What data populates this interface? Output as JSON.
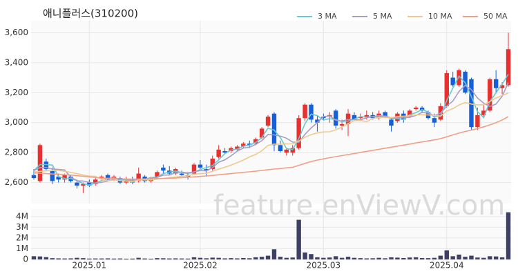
{
  "chart_data": [
    {
      "type": "candlestick",
      "title": "애니플러스(310200)",
      "watermark": "feature.enViewV.com",
      "up_color": "#e83030",
      "down_color": "#1560d8",
      "open": [
        2650,
        2610,
        2740,
        2680,
        2640,
        2620,
        2640,
        2600,
        2580,
        2600,
        2590,
        2630,
        2650,
        2630,
        2630,
        2600,
        2620,
        2610,
        2640,
        2610,
        2640,
        2700,
        2680,
        2660,
        2660,
        2650,
        2660,
        2720,
        2690,
        2690,
        2770,
        2810,
        2810,
        2820,
        2840,
        2860,
        2860,
        2900,
        2980,
        3060,
        2850,
        2800,
        2800,
        2830,
        3030,
        3120,
        3020,
        3040,
        3040,
        3080,
        2980,
        2990,
        3050,
        3030,
        3040,
        3050,
        3030,
        3070,
        3020,
        3010,
        3060,
        3040,
        3090,
        3100,
        3070,
        3030,
        3020,
        3110,
        3300,
        3250,
        3340,
        3290,
        2970,
        3050,
        3080,
        3290,
        3230,
        3250
      ],
      "high": [
        2690,
        2860,
        2760,
        2700,
        2660,
        2660,
        2650,
        2620,
        2600,
        2620,
        2630,
        2650,
        2660,
        2650,
        2640,
        2640,
        2640,
        2700,
        2650,
        2640,
        2680,
        2720,
        2710,
        2700,
        2680,
        2670,
        2730,
        2750,
        2720,
        2780,
        2850,
        2830,
        2840,
        2850,
        2870,
        2880,
        2900,
        2970,
        3050,
        3070,
        2880,
        2830,
        2850,
        3050,
        3130,
        3130,
        3050,
        3060,
        3070,
        3090,
        3020,
        3090,
        3070,
        3060,
        3080,
        3070,
        3080,
        3080,
        3030,
        3070,
        3080,
        3090,
        3110,
        3110,
        3080,
        3060,
        3130,
        3350,
        3340,
        3360,
        3350,
        3300,
        3100,
        3120,
        3300,
        3350,
        3270,
        3600
      ],
      "low": [
        2620,
        2600,
        2680,
        2590,
        2600,
        2600,
        2600,
        2560,
        2530,
        2570,
        2580,
        2610,
        2610,
        2610,
        2590,
        2590,
        2590,
        2600,
        2600,
        2600,
        2620,
        2660,
        2650,
        2650,
        2640,
        2620,
        2650,
        2690,
        2640,
        2680,
        2760,
        2790,
        2800,
        2810,
        2830,
        2830,
        2850,
        2890,
        2970,
        2810,
        2800,
        2780,
        2780,
        2820,
        3010,
        3000,
        2940,
        3020,
        3000,
        2960,
        2950,
        2910,
        3010,
        3010,
        3020,
        3020,
        3020,
        3030,
        2940,
        3000,
        3000,
        3030,
        3080,
        3070,
        3020,
        2970,
        3010,
        3100,
        3240,
        3240,
        3190,
        2950,
        2950,
        3030,
        3070,
        3200,
        3190,
        3240
      ],
      "close": [
        2630,
        2850,
        2690,
        2610,
        2620,
        2650,
        2610,
        2580,
        2590,
        2580,
        2620,
        2640,
        2620,
        2640,
        2600,
        2610,
        2600,
        2660,
        2610,
        2630,
        2670,
        2680,
        2660,
        2690,
        2650,
        2640,
        2720,
        2700,
        2680,
        2760,
        2820,
        2800,
        2830,
        2840,
        2860,
        2850,
        2890,
        2960,
        3040,
        2850,
        2810,
        2820,
        2830,
        3030,
        3120,
        3020,
        3000,
        3030,
        3050,
        2980,
        2990,
        3060,
        3020,
        3040,
        3050,
        3030,
        3060,
        3040,
        2980,
        3060,
        3020,
        3080,
        3100,
        3080,
        3030,
        3000,
        3110,
        3330,
        3250,
        3350,
        3200,
        2970,
        3050,
        3080,
        3290,
        3230,
        3250,
        3490
      ],
      "series": [
        {
          "name": "3 MA",
          "color": "#66c8d0",
          "values": [
            2680,
            2720,
            2720,
            2717,
            2640,
            2627,
            2627,
            2613,
            2593,
            2583,
            2597,
            2613,
            2627,
            2633,
            2620,
            2617,
            2603,
            2623,
            2623,
            2633,
            2637,
            2660,
            2670,
            2677,
            2667,
            2660,
            2670,
            2687,
            2700,
            2713,
            2753,
            2793,
            2817,
            2823,
            2843,
            2850,
            2867,
            2900,
            2963,
            2950,
            2900,
            2827,
            2820,
            2893,
            2993,
            3057,
            3047,
            3017,
            3027,
            3020,
            3007,
            3010,
            3023,
            3040,
            3037,
            3040,
            3047,
            3043,
            3027,
            3027,
            3020,
            3053,
            3067,
            3087,
            3070,
            3037,
            3047,
            3147,
            3230,
            3310,
            3267,
            3173,
            3073,
            3033,
            3140,
            3200,
            3257,
            3323
          ]
        },
        {
          "name": "5 MA",
          "color": "#a89bc8",
          "values": [
            2680,
            2700,
            2700,
            2690,
            2688,
            2684,
            2636,
            2612,
            2610,
            2602,
            2596,
            2602,
            2610,
            2624,
            2624,
            2622,
            2614,
            2622,
            2616,
            2622,
            2634,
            2650,
            2650,
            2666,
            2670,
            2664,
            2672,
            2680,
            2678,
            2700,
            2736,
            2752,
            2778,
            2810,
            2830,
            2836,
            2854,
            2880,
            2920,
            2918,
            2910,
            2896,
            2870,
            2868,
            2922,
            2964,
            3000,
            3040,
            3044,
            3016,
            3010,
            3022,
            3020,
            3018,
            3032,
            3040,
            3040,
            3044,
            3032,
            3034,
            3032,
            3036,
            3048,
            3068,
            3064,
            3046,
            3064,
            3110,
            3144,
            3208,
            3248,
            3220,
            3164,
            3130,
            3108,
            3124,
            3176,
            3268
          ]
        },
        {
          "name": "10 MA",
          "color": "#f0c88c",
          "values": [
            2670,
            2675,
            2678,
            2680,
            2682,
            2675,
            2668,
            2660,
            2650,
            2643,
            2642,
            2620,
            2613,
            2616,
            2613,
            2609,
            2608,
            2616,
            2619,
            2618,
            2624,
            2628,
            2632,
            2637,
            2642,
            2645,
            2656,
            2660,
            2662,
            2675,
            2690,
            2702,
            2717,
            2733,
            2750,
            2771,
            2788,
            2812,
            2848,
            2857,
            2856,
            2858,
            2858,
            2877,
            2903,
            2920,
            2931,
            2938,
            2939,
            2952,
            2970,
            2994,
            3013,
            3014,
            3007,
            3028,
            3034,
            3035,
            3033,
            3040,
            3043,
            3045,
            3051,
            3053,
            3051,
            3048,
            3043,
            3078,
            3093,
            3118,
            3134,
            3124,
            3119,
            3119,
            3141,
            3164,
            3181,
            3197
          ]
        },
        {
          "name": "50 MA",
          "color": "#f0a088",
          "values": [
            2665,
            2662,
            2660,
            2657,
            2655,
            2652,
            2650,
            2646,
            2642,
            2638,
            2634,
            2631,
            2628,
            2626,
            2625,
            2624,
            2623,
            2623,
            2624,
            2625,
            2626,
            2627,
            2629,
            2631,
            2633,
            2635,
            2638,
            2641,
            2644,
            2648,
            2652,
            2656,
            2660,
            2664,
            2668,
            2672,
            2676,
            2681,
            2686,
            2690,
            2694,
            2698,
            2702,
            2715,
            2728,
            2740,
            2750,
            2758,
            2766,
            2773,
            2780,
            2787,
            2794,
            2801,
            2808,
            2815,
            2822,
            2829,
            2836,
            2843,
            2850,
            2857,
            2864,
            2871,
            2878,
            2885,
            2893,
            2905,
            2918,
            2930,
            2941,
            2950,
            2960,
            2972,
            2985,
            3000,
            3018,
            3040
          ]
        }
      ],
      "ylim": [
        2460,
        3680
      ],
      "yticks": [
        {
          "value": 2600,
          "label": "2,600"
        },
        {
          "value": 2800,
          "label": "2,800"
        },
        {
          "value": 3000,
          "label": "3,000"
        },
        {
          "value": 3200,
          "label": "3,200"
        },
        {
          "value": 3400,
          "label": "3,400"
        },
        {
          "value": 3600,
          "label": "3,600"
        }
      ],
      "grid": true
    },
    {
      "type": "bar",
      "color": "#3d3f66",
      "categories": [
        null,
        null,
        null,
        null,
        null,
        null,
        null,
        null,
        null,
        "2025.01",
        null,
        null,
        null,
        null,
        null,
        null,
        null,
        null,
        null,
        null,
        null,
        null,
        null,
        null,
        null,
        null,
        null,
        "2025.02",
        null,
        null,
        null,
        null,
        null,
        null,
        null,
        null,
        null,
        null,
        null,
        null,
        null,
        null,
        null,
        null,
        null,
        null,
        null,
        "2025.03",
        null,
        null,
        null,
        null,
        null,
        null,
        null,
        null,
        null,
        null,
        null,
        null,
        null,
        null,
        null,
        null,
        null,
        null,
        null,
        "2025.04",
        null,
        null,
        null,
        null,
        null,
        null,
        null,
        null,
        null,
        null
      ],
      "values": [
        300000,
        280000,
        220000,
        120000,
        100000,
        90000,
        100000,
        150000,
        120000,
        80000,
        90000,
        90000,
        100000,
        80000,
        90000,
        70000,
        80000,
        150000,
        90000,
        70000,
        120000,
        110000,
        90000,
        100000,
        90000,
        80000,
        200000,
        150000,
        110000,
        170000,
        150000,
        100000,
        120000,
        100000,
        130000,
        110000,
        200000,
        250000,
        350000,
        950000,
        250000,
        150000,
        180000,
        3700000,
        650000,
        500000,
        200000,
        150000,
        180000,
        300000,
        150000,
        250000,
        150000,
        120000,
        100000,
        110000,
        150000,
        110000,
        200000,
        170000,
        130000,
        180000,
        200000,
        130000,
        120000,
        150000,
        350000,
        850000,
        300000,
        450000,
        250000,
        350000,
        180000,
        150000,
        300000,
        280000,
        200000,
        4400000
      ],
      "ylim": [
        0,
        4700000
      ],
      "yticks": [
        0,
        {
          "value": 1000000,
          "label": "1M"
        },
        {
          "value": 2000000,
          "label": "2M"
        },
        {
          "value": 3000000,
          "label": "3M"
        },
        {
          "value": 4000000,
          "label": "4M"
        }
      ],
      "grid": true
    }
  ]
}
